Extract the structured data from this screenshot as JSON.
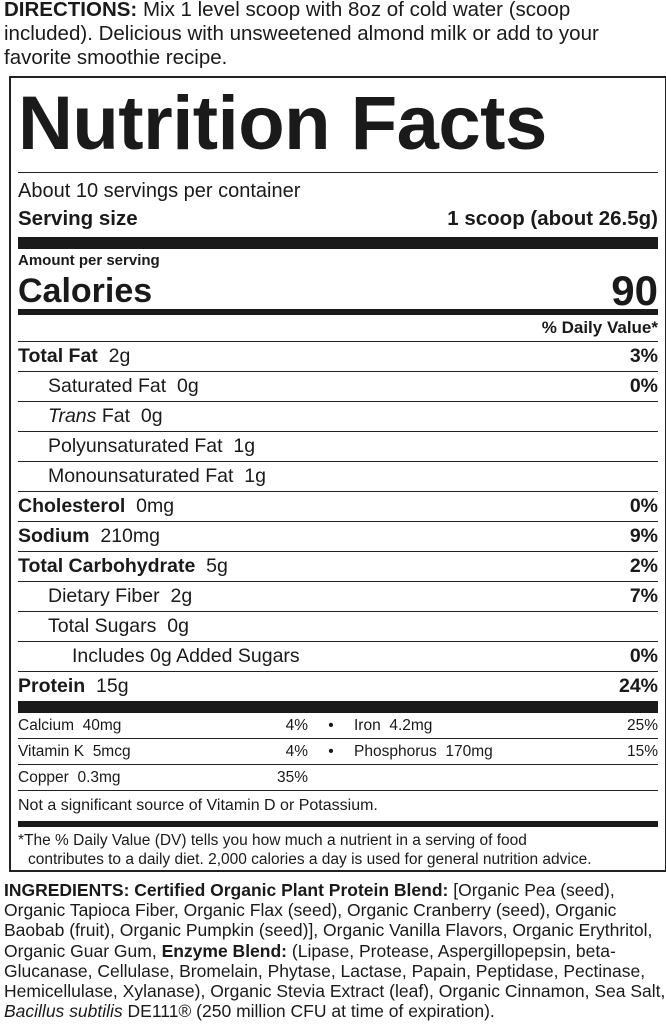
{
  "directions": {
    "label": "DIRECTIONS:",
    "text": " Mix 1 level scoop with 8oz of cold water (scoop included). Delicious with unsweetened almond milk or add to your favorite smoothie recipe."
  },
  "facts": {
    "title": "Nutrition Facts",
    "servings_per_container": "About 10 servings per container",
    "serving_size_label": "Serving size",
    "serving_size_value": "1 scoop (about 26.5g)",
    "amount_per_serving": "Amount per serving",
    "calories_label": "Calories",
    "calories_value": "90",
    "dv_header": "% Daily Value*",
    "nutrients": [
      {
        "name": "Total Fat",
        "amount": "2g",
        "dv": "3%"
      },
      {
        "name": "Saturated Fat",
        "amount": "0g",
        "dv": "0%"
      },
      {
        "name": "Trans",
        "name_suffix": " Fat",
        "amount": "0g",
        "dv": ""
      },
      {
        "name": "Polyunsaturated Fat",
        "amount": "1g",
        "dv": ""
      },
      {
        "name": "Monounsaturated Fat",
        "amount": "1g",
        "dv": ""
      },
      {
        "name": "Cholesterol",
        "amount": "0mg",
        "dv": "0%"
      },
      {
        "name": "Sodium",
        "amount": "210mg",
        "dv": "9%"
      },
      {
        "name": "Total Carbohydrate",
        "amount": "5g",
        "dv": "2%"
      },
      {
        "name": "Dietary Fiber",
        "amount": "2g",
        "dv": "7%"
      },
      {
        "name": "Total Sugars",
        "amount": "0g",
        "dv": ""
      },
      {
        "name": "Includes 0g Added Sugars",
        "amount": "",
        "dv": "0%"
      },
      {
        "name": "Protein",
        "amount": "15g",
        "dv": "24%"
      }
    ],
    "minerals": [
      {
        "name": "Calcium",
        "amount": "40mg",
        "dv": "4%"
      },
      {
        "name": "Iron",
        "amount": "4.2mg",
        "dv": "25%"
      },
      {
        "name": "Vitamin K",
        "amount": "5mcg",
        "dv": "4%"
      },
      {
        "name": "Phosphorus",
        "amount": "170mg",
        "dv": "15%"
      },
      {
        "name": "Copper",
        "amount": "0.3mg",
        "dv": "35%"
      }
    ],
    "bullet": "•",
    "not_significant": "Not a significant source of Vitamin D or Potassium.",
    "footnote_line1": "*The % Daily Value (DV) tells you how much a nutrient in a serving of food",
    "footnote_line2": "contributes to a daily diet. 2,000 calories a day is used for general nutrition advice."
  },
  "ingredients": [
    {
      "text": "INGREDIENTS: Certified Organic Plant Protein Blend:",
      "style": "bold"
    },
    {
      "text": " [Organic Pea (seed), Organic Tapioca Fiber, Organic Flax (seed), Organic Cranberry (seed), Organic Baobab (fruit), Organic Pumpkin (seed)], Organic Vanilla Flavors, Organic Erythritol, Organic Guar Gum, ",
      "style": "normal"
    },
    {
      "text": "Enzyme Blend:",
      "style": "bold"
    },
    {
      "text": " (Lipase, Protease, Aspergillopepsin, beta-Glucanase, Cellulase, Bromelain, Phytase, Lactase, Papain, Peptidase, Pectinase, Hemicellulase, Xylanase), Organic Stevia Extract (leaf), Organic Cinnamon, Sea Salt, ",
      "style": "normal"
    },
    {
      "text": "Bacillus subtilis",
      "style": "italic"
    },
    {
      "text": " DE111® (250 million CFU at time of expiration).",
      "style": "normal"
    }
  ]
}
